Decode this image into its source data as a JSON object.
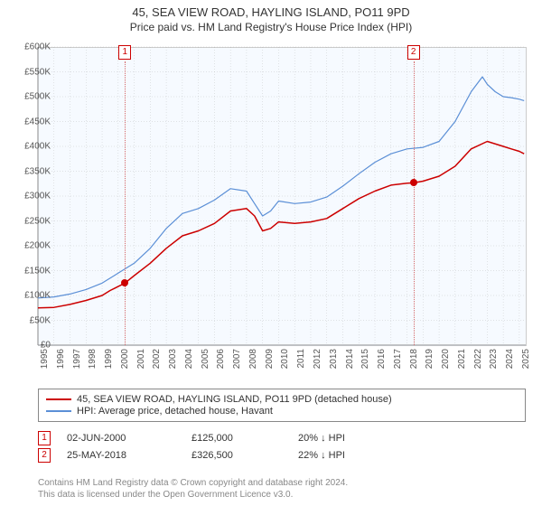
{
  "title_line1": "45, SEA VIEW ROAD, HAYLING ISLAND, PO11 9PD",
  "title_line2": "Price paid vs. HM Land Registry's House Price Index (HPI)",
  "chart": {
    "type": "line",
    "plot_bg": "#f6faff",
    "grid_color": "#aaaaaa",
    "ylim": [
      0,
      600000
    ],
    "ytick_step": 50000,
    "y_prefix": "£",
    "y_suffix_k": "K",
    "x_years": [
      1995,
      1996,
      1997,
      1998,
      1999,
      2000,
      2001,
      2002,
      2003,
      2004,
      2005,
      2006,
      2007,
      2008,
      2009,
      2010,
      2011,
      2012,
      2013,
      2014,
      2015,
      2016,
      2017,
      2018,
      2019,
      2020,
      2021,
      2022,
      2023,
      2024,
      2025
    ],
    "series": [
      {
        "name": "45, SEA VIEW ROAD, HAYLING ISLAND, PO11 9PD (detached house)",
        "color": "#cc0000",
        "width": 1.5,
        "points": [
          [
            1995.0,
            75000
          ],
          [
            1996.0,
            76000
          ],
          [
            1997.0,
            82000
          ],
          [
            1998.0,
            90000
          ],
          [
            1999.0,
            100000
          ],
          [
            1999.5,
            110000
          ],
          [
            2000.0,
            118000
          ],
          [
            2000.42,
            125000
          ],
          [
            2001.0,
            140000
          ],
          [
            2002.0,
            165000
          ],
          [
            2003.0,
            195000
          ],
          [
            2004.0,
            220000
          ],
          [
            2005.0,
            230000
          ],
          [
            2006.0,
            245000
          ],
          [
            2007.0,
            270000
          ],
          [
            2008.0,
            275000
          ],
          [
            2008.5,
            260000
          ],
          [
            2009.0,
            230000
          ],
          [
            2009.5,
            235000
          ],
          [
            2010.0,
            248000
          ],
          [
            2011.0,
            245000
          ],
          [
            2012.0,
            248000
          ],
          [
            2013.0,
            255000
          ],
          [
            2014.0,
            275000
          ],
          [
            2015.0,
            295000
          ],
          [
            2016.0,
            310000
          ],
          [
            2017.0,
            322000
          ],
          [
            2018.0,
            326000
          ],
          [
            2018.4,
            326500
          ],
          [
            2019.0,
            330000
          ],
          [
            2020.0,
            340000
          ],
          [
            2021.0,
            360000
          ],
          [
            2022.0,
            395000
          ],
          [
            2023.0,
            410000
          ],
          [
            2024.0,
            400000
          ],
          [
            2024.5,
            395000
          ],
          [
            2025.0,
            390000
          ],
          [
            2025.3,
            385000
          ]
        ]
      },
      {
        "name": "HPI: Average price, detached house, Havant",
        "color": "#5b8fd6",
        "width": 1.2,
        "points": [
          [
            1995.0,
            95000
          ],
          [
            1996.0,
            97000
          ],
          [
            1997.0,
            103000
          ],
          [
            1998.0,
            112000
          ],
          [
            1999.0,
            125000
          ],
          [
            2000.0,
            145000
          ],
          [
            2001.0,
            165000
          ],
          [
            2002.0,
            195000
          ],
          [
            2003.0,
            235000
          ],
          [
            2004.0,
            265000
          ],
          [
            2005.0,
            275000
          ],
          [
            2006.0,
            292000
          ],
          [
            2007.0,
            315000
          ],
          [
            2008.0,
            310000
          ],
          [
            2008.5,
            285000
          ],
          [
            2009.0,
            260000
          ],
          [
            2009.5,
            270000
          ],
          [
            2010.0,
            290000
          ],
          [
            2011.0,
            285000
          ],
          [
            2012.0,
            288000
          ],
          [
            2013.0,
            298000
          ],
          [
            2014.0,
            320000
          ],
          [
            2015.0,
            345000
          ],
          [
            2016.0,
            368000
          ],
          [
            2017.0,
            385000
          ],
          [
            2018.0,
            395000
          ],
          [
            2019.0,
            398000
          ],
          [
            2020.0,
            410000
          ],
          [
            2021.0,
            450000
          ],
          [
            2022.0,
            510000
          ],
          [
            2022.7,
            540000
          ],
          [
            2023.0,
            525000
          ],
          [
            2023.5,
            510000
          ],
          [
            2024.0,
            500000
          ],
          [
            2024.5,
            498000
          ],
          [
            2025.0,
            495000
          ],
          [
            2025.3,
            492000
          ]
        ]
      }
    ],
    "sales_markers": [
      {
        "idx": "1",
        "x": 2000.42,
        "y": 125000
      },
      {
        "idx": "2",
        "x": 2018.4,
        "y": 326500
      }
    ]
  },
  "legend": {
    "row1_color": "#cc0000",
    "row1_label": "45, SEA VIEW ROAD, HAYLING ISLAND, PO11 9PD (detached house)",
    "row2_color": "#5b8fd6",
    "row2_label": "HPI: Average price, detached house, Havant"
  },
  "sales": [
    {
      "idx": "1",
      "date": "02-JUN-2000",
      "price": "£125,000",
      "delta": "20% ↓ HPI"
    },
    {
      "idx": "2",
      "date": "25-MAY-2018",
      "price": "£326,500",
      "delta": "22% ↓ HPI"
    }
  ],
  "footer_line1": "Contains HM Land Registry data © Crown copyright and database right 2024.",
  "footer_line2": "This data is licensed under the Open Government Licence v3.0."
}
